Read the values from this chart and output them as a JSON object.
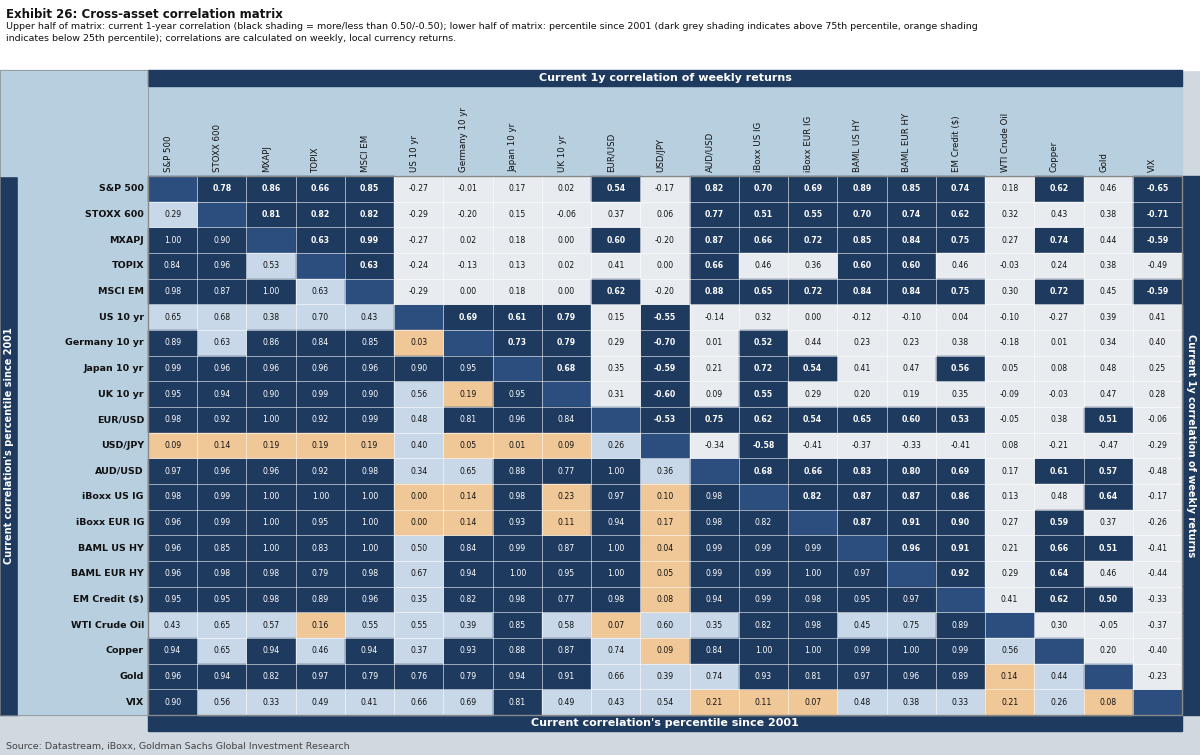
{
  "title": "Exhibit 26: Cross-asset correlation matrix",
  "subtitle1": "Upper half of matrix: current 1-year correlation (black shading = more/less than 0.50/-0.50); lower half of matrix: percentile since 2001 (dark grey shading indicates above 75th percentile, orange shading",
  "subtitle2": "indicates below 25th percentile); correlations are calculated on weekly, local currency returns.",
  "source": "Source: Datastream, iBoxx, Goldman Sachs Global Investment Research",
  "labels": [
    "S&P 500",
    "STOXX 600",
    "MXAPJ",
    "TOPIX",
    "MSCI EM",
    "US 10 yr",
    "Germany 10 yr",
    "Japan 10 yr",
    "UK 10 yr",
    "EUR/USD",
    "USD/JPY",
    "AUD/USD",
    "iBoxx US IG",
    "iBoxx EUR IG",
    "BAML US HY",
    "BAML EUR HY",
    "EM Credit ($)",
    "WTI Crude Oil",
    "Copper",
    "Gold",
    "VIX"
  ],
  "col_header_label_top": "Current 1y correlation of weekly returns",
  "col_header_label_bottom": "Current correlation's percentile since 2001",
  "row_label_left": "Current correlation's percentile since 2001",
  "row_label_right": "Current 1y correlation of weekly returns",
  "matrix": [
    [
      null,
      0.78,
      0.86,
      0.66,
      0.85,
      -0.27,
      -0.01,
      0.17,
      0.02,
      0.54,
      -0.17,
      0.82,
      0.7,
      0.69,
      0.89,
      0.85,
      0.74,
      0.18,
      0.62,
      0.46,
      -0.65
    ],
    [
      0.29,
      null,
      0.81,
      0.82,
      0.82,
      -0.29,
      -0.2,
      0.15,
      -0.06,
      0.37,
      0.06,
      0.77,
      0.51,
      0.55,
      0.7,
      0.74,
      0.62,
      0.32,
      0.43,
      0.38,
      -0.71
    ],
    [
      1.0,
      0.9,
      null,
      0.63,
      0.99,
      -0.27,
      0.02,
      0.18,
      0.0,
      0.6,
      -0.2,
      0.87,
      0.66,
      0.72,
      0.85,
      0.84,
      0.75,
      0.27,
      0.74,
      0.44,
      -0.59
    ],
    [
      0.84,
      0.96,
      0.53,
      null,
      0.63,
      -0.24,
      -0.13,
      0.13,
      0.02,
      0.41,
      0.0,
      0.66,
      0.46,
      0.36,
      0.6,
      0.6,
      0.46,
      -0.03,
      0.24,
      0.38,
      -0.49
    ],
    [
      0.98,
      0.87,
      1.0,
      0.63,
      null,
      -0.29,
      0.0,
      0.18,
      0.0,
      0.62,
      -0.2,
      0.88,
      0.65,
      0.72,
      0.84,
      0.84,
      0.75,
      0.3,
      0.72,
      0.45,
      -0.59
    ],
    [
      0.65,
      0.68,
      0.38,
      0.7,
      0.43,
      null,
      0.69,
      0.61,
      0.79,
      0.15,
      -0.55,
      -0.14,
      0.32,
      0.0,
      -0.12,
      -0.1,
      0.04,
      -0.1,
      -0.27,
      0.39,
      0.41
    ],
    [
      0.89,
      0.63,
      0.86,
      0.84,
      0.85,
      0.03,
      null,
      0.73,
      0.79,
      0.29,
      -0.7,
      0.01,
      0.52,
      0.44,
      0.23,
      0.23,
      0.38,
      -0.18,
      0.01,
      0.34,
      0.4
    ],
    [
      0.99,
      0.96,
      0.96,
      0.96,
      0.96,
      0.9,
      0.95,
      null,
      0.68,
      0.35,
      -0.59,
      0.21,
      0.72,
      0.54,
      0.41,
      0.47,
      0.56,
      0.05,
      0.08,
      0.48,
      0.25
    ],
    [
      0.95,
      0.94,
      0.9,
      0.99,
      0.9,
      0.56,
      0.19,
      0.95,
      null,
      0.31,
      -0.6,
      0.09,
      0.55,
      0.29,
      0.2,
      0.19,
      0.35,
      -0.09,
      -0.03,
      0.47,
      0.28
    ],
    [
      0.98,
      0.92,
      1.0,
      0.92,
      0.99,
      0.48,
      0.81,
      0.96,
      0.84,
      null,
      -0.53,
      0.75,
      0.62,
      0.54,
      0.65,
      0.6,
      0.53,
      -0.05,
      0.38,
      0.51,
      -0.06
    ],
    [
      0.09,
      0.14,
      0.19,
      0.19,
      0.19,
      0.4,
      0.05,
      0.01,
      0.09,
      0.26,
      null,
      -0.34,
      -0.58,
      -0.41,
      -0.37,
      -0.33,
      -0.41,
      0.08,
      -0.21,
      -0.47,
      -0.29
    ],
    [
      0.97,
      0.96,
      0.96,
      0.92,
      0.98,
      0.34,
      0.65,
      0.88,
      0.77,
      1.0,
      0.36,
      null,
      0.68,
      0.66,
      0.83,
      0.8,
      0.69,
      0.17,
      0.61,
      0.57,
      -0.48
    ],
    [
      0.98,
      0.99,
      1.0,
      1.0,
      1.0,
      0.0,
      0.14,
      0.98,
      0.23,
      0.97,
      0.1,
      0.98,
      null,
      0.82,
      0.87,
      0.87,
      0.86,
      0.13,
      0.48,
      0.64,
      -0.17
    ],
    [
      0.96,
      0.99,
      1.0,
      0.95,
      1.0,
      0.0,
      0.14,
      0.93,
      0.11,
      0.94,
      0.17,
      0.98,
      0.82,
      null,
      0.87,
      0.91,
      0.9,
      0.27,
      0.59,
      0.37,
      -0.26
    ],
    [
      0.96,
      0.85,
      1.0,
      0.83,
      1.0,
      0.5,
      0.84,
      0.99,
      0.87,
      1.0,
      0.04,
      0.99,
      0.99,
      0.99,
      null,
      0.96,
      0.91,
      0.21,
      0.66,
      0.51,
      -0.41
    ],
    [
      0.96,
      0.98,
      0.98,
      0.79,
      0.98,
      0.67,
      0.94,
      1.0,
      0.95,
      1.0,
      0.05,
      0.99,
      0.99,
      1.0,
      0.97,
      null,
      0.92,
      0.29,
      0.64,
      0.46,
      -0.44
    ],
    [
      0.95,
      0.95,
      0.98,
      0.89,
      0.96,
      0.35,
      0.82,
      0.98,
      0.77,
      0.98,
      0.08,
      0.94,
      0.99,
      0.98,
      0.95,
      0.97,
      null,
      0.41,
      0.62,
      0.5,
      -0.33
    ],
    [
      0.43,
      0.65,
      0.57,
      0.16,
      0.55,
      0.55,
      0.39,
      0.85,
      0.58,
      0.07,
      0.6,
      0.35,
      0.82,
      0.98,
      0.45,
      0.75,
      0.89,
      null,
      0.3,
      -0.05,
      -0.37
    ],
    [
      0.94,
      0.65,
      0.94,
      0.46,
      0.94,
      0.37,
      0.93,
      0.88,
      0.87,
      0.74,
      0.09,
      0.84,
      1.0,
      1.0,
      0.99,
      1.0,
      0.99,
      0.56,
      null,
      0.2,
      -0.4
    ],
    [
      0.96,
      0.94,
      0.82,
      0.97,
      0.79,
      0.76,
      0.79,
      0.94,
      0.91,
      0.66,
      0.39,
      0.74,
      0.93,
      0.81,
      0.97,
      0.96,
      0.89,
      0.14,
      0.44,
      null,
      -0.23
    ],
    [
      0.9,
      0.56,
      0.33,
      0.49,
      0.41,
      0.66,
      0.69,
      0.81,
      0.49,
      0.43,
      0.54,
      0.21,
      0.11,
      0.07,
      0.48,
      0.38,
      0.33,
      0.21,
      0.26,
      0.08,
      null
    ]
  ],
  "n": 21,
  "HEADER_BG": "#b8cfe0",
  "HEADER_DARK": "#1e3a5f",
  "CELL_LIGHT": "#c8d8e8",
  "CELL_DARK": "#1e3a5f",
  "CELL_ORANGE": "#f0c898",
  "CELL_WHITE": "#e8ecf0",
  "DIAGONAL": "#2c4e7e",
  "fig_bg": "#d0d8e0",
  "title_bg": "#ffffff",
  "left_band_bg": "#1e3a5f",
  "right_band_bg": "#1e3a5f"
}
